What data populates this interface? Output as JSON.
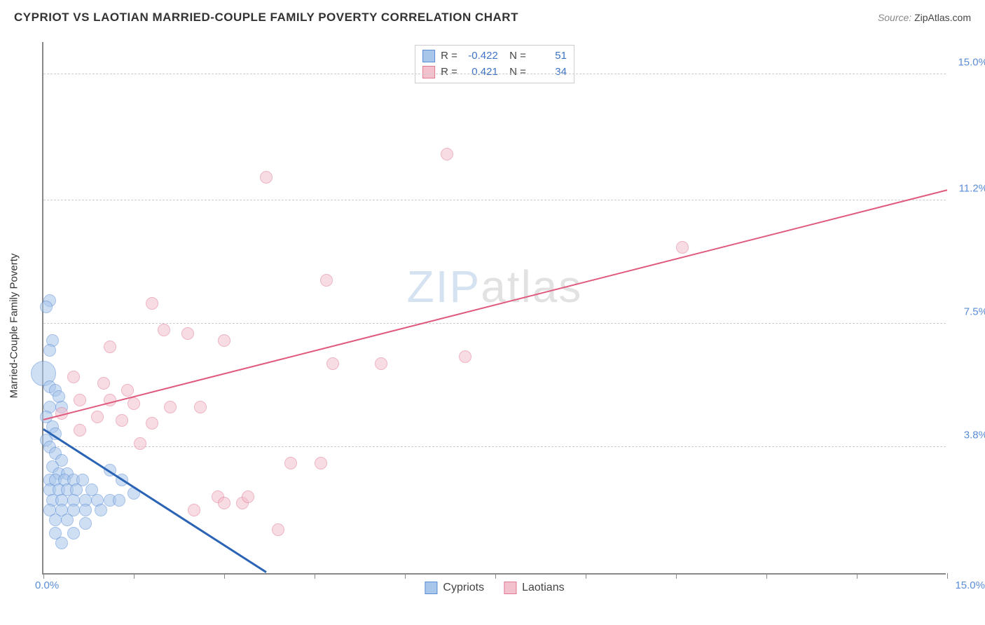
{
  "title": "CYPRIOT VS LAOTIAN MARRIED-COUPLE FAMILY POVERTY CORRELATION CHART",
  "source_label": "Source:",
  "source_value": "ZipAtlas.com",
  "y_axis_label": "Married-Couple Family Poverty",
  "watermark": {
    "part1": "ZIP",
    "part2": "atlas"
  },
  "chart": {
    "type": "scatter",
    "xlim": [
      0,
      15
    ],
    "ylim": [
      0,
      16
    ],
    "x_origin_label": "0.0%",
    "x_max_label": "15.0%",
    "y_ticks": [
      {
        "value": 3.8,
        "label": "3.8%"
      },
      {
        "value": 7.5,
        "label": "7.5%"
      },
      {
        "value": 11.2,
        "label": "11.2%"
      },
      {
        "value": 15.0,
        "label": "15.0%"
      }
    ],
    "x_tick_positions": [
      0,
      1.5,
      3.0,
      4.5,
      6.0,
      7.5,
      9.0,
      10.5,
      12.0,
      13.5,
      15.0
    ],
    "grid_color": "#cccccc",
    "background_color": "#ffffff",
    "marker_radius": 9,
    "marker_opacity": 0.55,
    "marker_stroke_width": 1.4,
    "series": [
      {
        "name": "Cypriots",
        "color_fill": "#a8c6ea",
        "color_stroke": "#5b8dd6",
        "R": "-0.422",
        "N": "51",
        "trend": {
          "x1": 0.0,
          "y1": 4.3,
          "x2": 3.7,
          "y2": 0.0,
          "color": "#2b63b5",
          "width": 2.5
        },
        "points": [
          {
            "x": 0.1,
            "y": 8.2,
            "r": 9
          },
          {
            "x": 0.05,
            "y": 8.0,
            "r": 9
          },
          {
            "x": 0.15,
            "y": 7.0,
            "r": 9
          },
          {
            "x": 0.1,
            "y": 6.7,
            "r": 9
          },
          {
            "x": 0.0,
            "y": 6.0,
            "r": 18
          },
          {
            "x": 0.1,
            "y": 5.6,
            "r": 9
          },
          {
            "x": 0.2,
            "y": 5.5,
            "r": 9
          },
          {
            "x": 0.25,
            "y": 5.3,
            "r": 9
          },
          {
            "x": 0.1,
            "y": 5.0,
            "r": 9
          },
          {
            "x": 0.3,
            "y": 5.0,
            "r": 9
          },
          {
            "x": 0.05,
            "y": 4.7,
            "r": 9
          },
          {
            "x": 0.15,
            "y": 4.4,
            "r": 9
          },
          {
            "x": 0.2,
            "y": 4.2,
            "r": 9
          },
          {
            "x": 0.05,
            "y": 4.0,
            "r": 9
          },
          {
            "x": 0.1,
            "y": 3.8,
            "r": 9
          },
          {
            "x": 0.2,
            "y": 3.6,
            "r": 9
          },
          {
            "x": 0.3,
            "y": 3.4,
            "r": 9
          },
          {
            "x": 0.15,
            "y": 3.2,
            "r": 9
          },
          {
            "x": 0.25,
            "y": 3.0,
            "r": 9
          },
          {
            "x": 0.4,
            "y": 3.0,
            "r": 9
          },
          {
            "x": 0.1,
            "y": 2.8,
            "r": 9
          },
          {
            "x": 0.2,
            "y": 2.8,
            "r": 9
          },
          {
            "x": 0.35,
            "y": 2.8,
            "r": 9
          },
          {
            "x": 0.5,
            "y": 2.8,
            "r": 9
          },
          {
            "x": 0.65,
            "y": 2.8,
            "r": 9
          },
          {
            "x": 0.1,
            "y": 2.5,
            "r": 9
          },
          {
            "x": 0.25,
            "y": 2.5,
            "r": 9
          },
          {
            "x": 0.4,
            "y": 2.5,
            "r": 9
          },
          {
            "x": 0.55,
            "y": 2.5,
            "r": 9
          },
          {
            "x": 0.8,
            "y": 2.5,
            "r": 9
          },
          {
            "x": 0.15,
            "y": 2.2,
            "r": 9
          },
          {
            "x": 0.3,
            "y": 2.2,
            "r": 9
          },
          {
            "x": 0.5,
            "y": 2.2,
            "r": 9
          },
          {
            "x": 0.7,
            "y": 2.2,
            "r": 9
          },
          {
            "x": 0.9,
            "y": 2.2,
            "r": 9
          },
          {
            "x": 1.1,
            "y": 2.2,
            "r": 9
          },
          {
            "x": 1.25,
            "y": 2.2,
            "r": 9
          },
          {
            "x": 0.1,
            "y": 1.9,
            "r": 9
          },
          {
            "x": 0.3,
            "y": 1.9,
            "r": 9
          },
          {
            "x": 0.5,
            "y": 1.9,
            "r": 9
          },
          {
            "x": 0.7,
            "y": 1.9,
            "r": 9
          },
          {
            "x": 0.95,
            "y": 1.9,
            "r": 9
          },
          {
            "x": 0.2,
            "y": 1.6,
            "r": 9
          },
          {
            "x": 0.4,
            "y": 1.6,
            "r": 9
          },
          {
            "x": 0.7,
            "y": 1.5,
            "r": 9
          },
          {
            "x": 0.2,
            "y": 1.2,
            "r": 9
          },
          {
            "x": 0.5,
            "y": 1.2,
            "r": 9
          },
          {
            "x": 0.3,
            "y": 0.9,
            "r": 9
          },
          {
            "x": 1.3,
            "y": 2.8,
            "r": 9
          },
          {
            "x": 1.5,
            "y": 2.4,
            "r": 9
          },
          {
            "x": 1.1,
            "y": 3.1,
            "r": 9
          }
        ]
      },
      {
        "name": "Laotians",
        "color_fill": "#f3c0cd",
        "color_stroke": "#e07a93",
        "R": "0.421",
        "N": "34",
        "trend": {
          "x1": 0.0,
          "y1": 4.6,
          "x2": 15.0,
          "y2": 11.5,
          "color": "#e05a7d",
          "width": 2
        },
        "points": [
          {
            "x": 6.7,
            "y": 12.6,
            "r": 9
          },
          {
            "x": 3.7,
            "y": 11.9,
            "r": 9
          },
          {
            "x": 10.6,
            "y": 9.8,
            "r": 9
          },
          {
            "x": 4.7,
            "y": 8.8,
            "r": 9
          },
          {
            "x": 1.8,
            "y": 8.1,
            "r": 9
          },
          {
            "x": 2.0,
            "y": 7.3,
            "r": 9
          },
          {
            "x": 2.4,
            "y": 7.2,
            "r": 9
          },
          {
            "x": 3.0,
            "y": 7.0,
            "r": 9
          },
          {
            "x": 1.1,
            "y": 6.8,
            "r": 9
          },
          {
            "x": 4.8,
            "y": 6.3,
            "r": 9
          },
          {
            "x": 5.6,
            "y": 6.3,
            "r": 9
          },
          {
            "x": 7.0,
            "y": 6.5,
            "r": 9
          },
          {
            "x": 0.5,
            "y": 5.9,
            "r": 9
          },
          {
            "x": 1.0,
            "y": 5.7,
            "r": 9
          },
          {
            "x": 1.4,
            "y": 5.5,
            "r": 9
          },
          {
            "x": 0.6,
            "y": 5.2,
            "r": 9
          },
          {
            "x": 1.1,
            "y": 5.2,
            "r": 9
          },
          {
            "x": 1.5,
            "y": 5.1,
            "r": 9
          },
          {
            "x": 2.1,
            "y": 5.0,
            "r": 9
          },
          {
            "x": 2.6,
            "y": 5.0,
            "r": 9
          },
          {
            "x": 0.3,
            "y": 4.8,
            "r": 9
          },
          {
            "x": 0.9,
            "y": 4.7,
            "r": 9
          },
          {
            "x": 1.3,
            "y": 4.6,
            "r": 9
          },
          {
            "x": 1.8,
            "y": 4.5,
            "r": 9
          },
          {
            "x": 0.6,
            "y": 4.3,
            "r": 9
          },
          {
            "x": 4.1,
            "y": 3.3,
            "r": 9
          },
          {
            "x": 4.6,
            "y": 3.3,
            "r": 9
          },
          {
            "x": 2.9,
            "y": 2.3,
            "r": 9
          },
          {
            "x": 3.0,
            "y": 2.1,
            "r": 9
          },
          {
            "x": 3.3,
            "y": 2.1,
            "r": 9
          },
          {
            "x": 3.4,
            "y": 2.3,
            "r": 9
          },
          {
            "x": 2.5,
            "y": 1.9,
            "r": 9
          },
          {
            "x": 3.9,
            "y": 1.3,
            "r": 9
          },
          {
            "x": 1.6,
            "y": 3.9,
            "r": 9
          }
        ]
      }
    ],
    "legend_bottom": [
      {
        "label": "Cypriots",
        "fill": "#a8c6ea",
        "stroke": "#5b8dd6"
      },
      {
        "label": "Laotians",
        "fill": "#f3c0cd",
        "stroke": "#e07a93"
      }
    ]
  }
}
